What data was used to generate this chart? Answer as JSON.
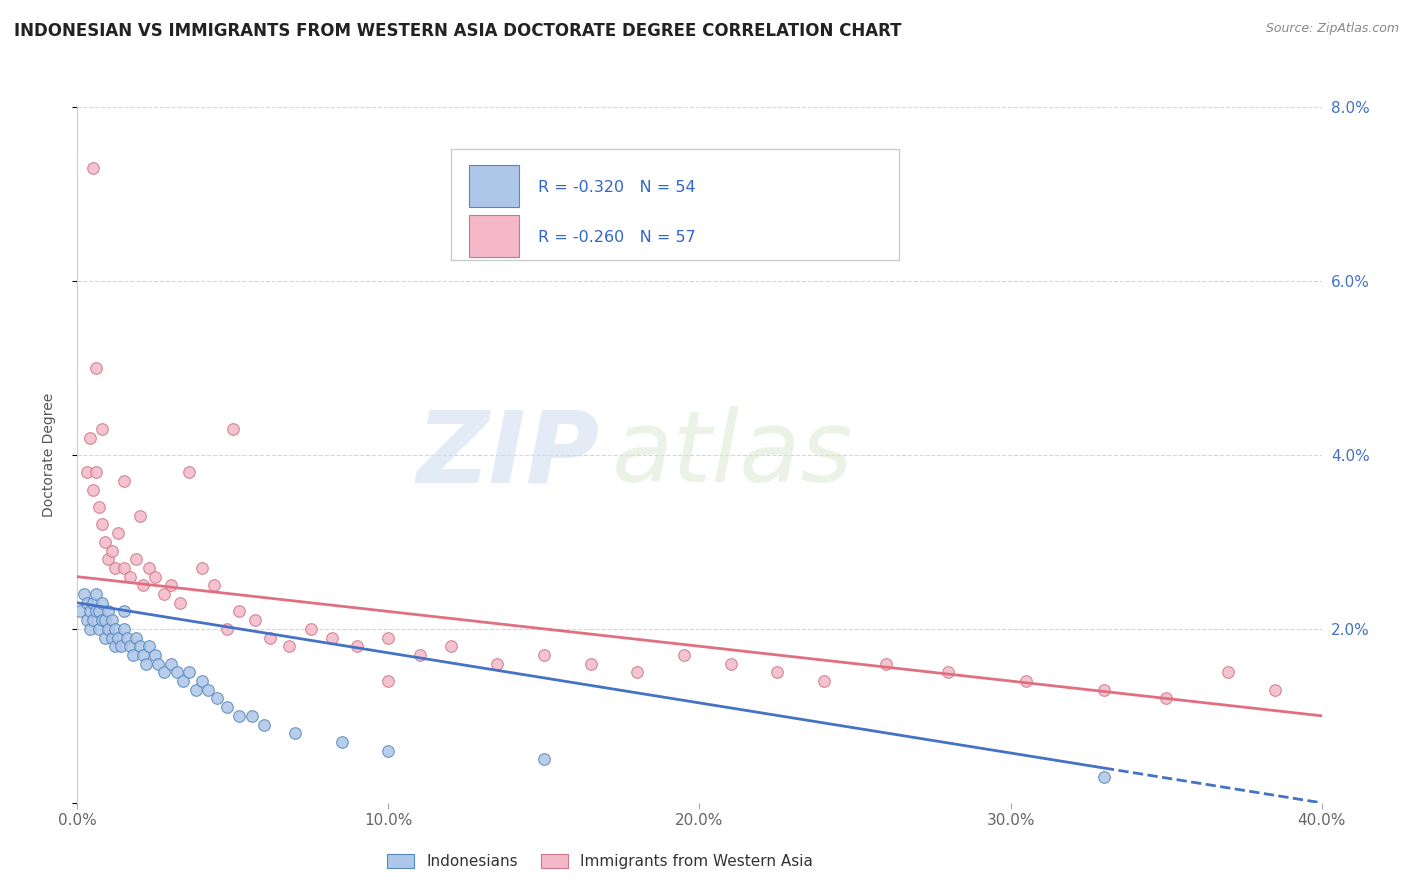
{
  "title": "INDONESIAN VS IMMIGRANTS FROM WESTERN ASIA DOCTORATE DEGREE CORRELATION CHART",
  "source_text": "Source: ZipAtlas.com",
  "ylabel": "Doctorate Degree",
  "xlim": [
    0.0,
    0.4
  ],
  "ylim": [
    0.0,
    0.08
  ],
  "xticks": [
    0.0,
    0.1,
    0.2,
    0.3,
    0.4
  ],
  "yticks": [
    0.0,
    0.02,
    0.04,
    0.06,
    0.08
  ],
  "xtick_labels": [
    "0.0%",
    "10.0%",
    "20.0%",
    "30.0%",
    "40.0%"
  ],
  "ytick_labels_right": [
    "",
    "2.0%",
    "4.0%",
    "6.0%",
    "8.0%"
  ],
  "series1_name": "Indonesians",
  "series1_color": "#aec6e8",
  "series1_edge": "#5588bb",
  "series1_R": -0.32,
  "series1_N": 54,
  "series2_name": "Immigrants from Western Asia",
  "series2_color": "#f4b8c8",
  "series2_edge": "#cc7788",
  "series2_R": -0.26,
  "series2_N": 57,
  "trend1_color": "#4472c4",
  "trend2_color": "#e07080",
  "background_color": "#ffffff",
  "watermark_zip": "ZIP",
  "watermark_atlas": "atlas",
  "title_fontsize": 12,
  "axis_label_fontsize": 10,
  "tick_fontsize": 11,
  "legend_fontsize": 11,
  "series1_x": [
    0.001,
    0.002,
    0.003,
    0.003,
    0.004,
    0.004,
    0.005,
    0.005,
    0.006,
    0.006,
    0.007,
    0.007,
    0.008,
    0.008,
    0.009,
    0.009,
    0.01,
    0.01,
    0.011,
    0.011,
    0.012,
    0.012,
    0.013,
    0.014,
    0.015,
    0.015,
    0.016,
    0.017,
    0.018,
    0.019,
    0.02,
    0.021,
    0.022,
    0.023,
    0.025,
    0.026,
    0.028,
    0.03,
    0.032,
    0.034,
    0.036,
    0.038,
    0.04,
    0.042,
    0.045,
    0.048,
    0.052,
    0.056,
    0.06,
    0.07,
    0.085,
    0.1,
    0.15,
    0.33
  ],
  "series1_y": [
    0.022,
    0.024,
    0.021,
    0.023,
    0.02,
    0.022,
    0.021,
    0.023,
    0.022,
    0.024,
    0.02,
    0.022,
    0.021,
    0.023,
    0.019,
    0.021,
    0.02,
    0.022,
    0.019,
    0.021,
    0.018,
    0.02,
    0.019,
    0.018,
    0.02,
    0.022,
    0.019,
    0.018,
    0.017,
    0.019,
    0.018,
    0.017,
    0.016,
    0.018,
    0.017,
    0.016,
    0.015,
    0.016,
    0.015,
    0.014,
    0.015,
    0.013,
    0.014,
    0.013,
    0.012,
    0.011,
    0.01,
    0.01,
    0.009,
    0.008,
    0.007,
    0.006,
    0.005,
    0.003
  ],
  "series2_x": [
    0.003,
    0.004,
    0.005,
    0.006,
    0.007,
    0.008,
    0.009,
    0.01,
    0.011,
    0.012,
    0.013,
    0.015,
    0.017,
    0.019,
    0.021,
    0.023,
    0.025,
    0.028,
    0.03,
    0.033,
    0.036,
    0.04,
    0.044,
    0.048,
    0.052,
    0.057,
    0.062,
    0.068,
    0.075,
    0.082,
    0.09,
    0.1,
    0.11,
    0.12,
    0.135,
    0.15,
    0.165,
    0.18,
    0.195,
    0.21,
    0.225,
    0.24,
    0.26,
    0.28,
    0.305,
    0.33,
    0.35,
    0.37,
    0.385,
    0.01,
    0.005,
    0.006,
    0.008,
    0.015,
    0.02,
    0.05,
    0.1
  ],
  "series2_y": [
    0.038,
    0.042,
    0.036,
    0.038,
    0.034,
    0.032,
    0.03,
    0.028,
    0.029,
    0.027,
    0.031,
    0.027,
    0.026,
    0.028,
    0.025,
    0.027,
    0.026,
    0.024,
    0.025,
    0.023,
    0.038,
    0.027,
    0.025,
    0.02,
    0.022,
    0.021,
    0.019,
    0.018,
    0.02,
    0.019,
    0.018,
    0.019,
    0.017,
    0.018,
    0.016,
    0.017,
    0.016,
    0.015,
    0.017,
    0.016,
    0.015,
    0.014,
    0.016,
    0.015,
    0.014,
    0.013,
    0.012,
    0.015,
    0.013,
    0.02,
    0.073,
    0.05,
    0.043,
    0.037,
    0.033,
    0.043,
    0.014
  ],
  "trend1_x_start": 0.0,
  "trend1_y_start": 0.023,
  "trend1_x_solid_end": 0.33,
  "trend1_y_solid_end": 0.004,
  "trend1_x_dash_end": 0.4,
  "trend1_y_dash_end": 0.0,
  "trend2_x_start": 0.0,
  "trend2_y_start": 0.026,
  "trend2_x_end": 0.4,
  "trend2_y_end": 0.01
}
